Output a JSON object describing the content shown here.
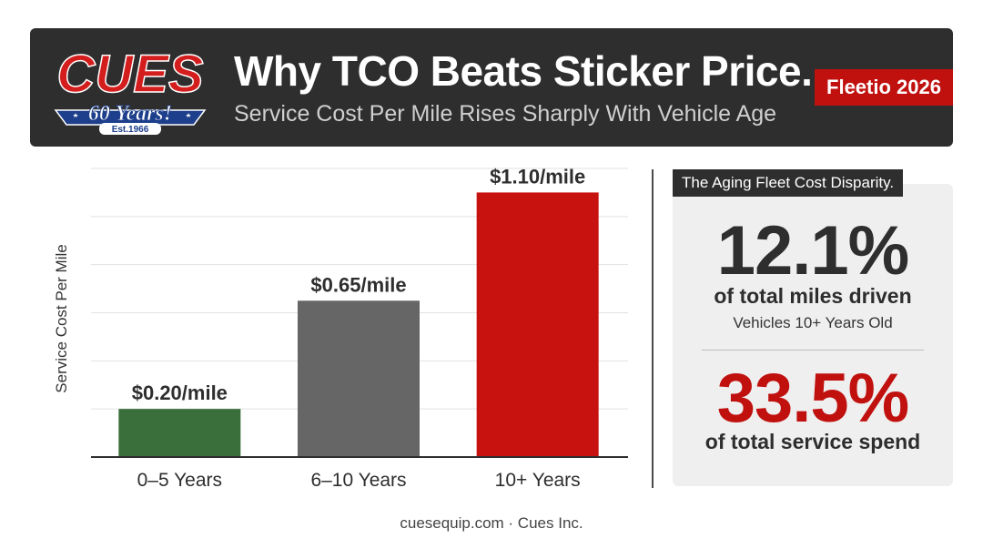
{
  "header": {
    "logo": {
      "brand": "CUES",
      "years": "60 Years!",
      "est": "Est.1966"
    },
    "title": "Why TCO Beats Sticker Price.",
    "subtitle": "Service Cost Per Mile Rises Sharply With Vehicle Age",
    "badge": "Fleetio 2026"
  },
  "colors": {
    "header_bg": "#2e2e2e",
    "accent_red": "#c0110f",
    "bar_green": "#3a6e3a",
    "bar_gray": "#666666",
    "bar_red": "#c8120f",
    "panel_bg": "#efefef"
  },
  "chart_data": {
    "type": "bar",
    "title": "",
    "xlabel": "",
    "ylabel": "Service Cost Per Mile",
    "categories": [
      "0–5 Years",
      "6–10 Years",
      "10+ Years"
    ],
    "values": [
      0.2,
      0.65,
      1.1
    ],
    "data_labels": [
      "$0.20/mile",
      "$0.65/mile",
      "$1.10/mile"
    ],
    "ylim": [
      0,
      1.2
    ],
    "grid": true,
    "gridlines": [
      0.2,
      0.4,
      0.6,
      0.8,
      1.0,
      1.2
    ],
    "bar_colors": [
      "#3a6e3a",
      "#666666",
      "#c8120f"
    ]
  },
  "panel": {
    "tag": "The Aging Fleet Cost Disparity.",
    "stat1": {
      "value": "12.1%",
      "label": "of total miles driven",
      "sub": "Vehicles 10+ Years Old"
    },
    "stat2": {
      "value": "33.5%",
      "label": "of total service spend"
    }
  },
  "footer": "cuesequip.com · Cues Inc."
}
